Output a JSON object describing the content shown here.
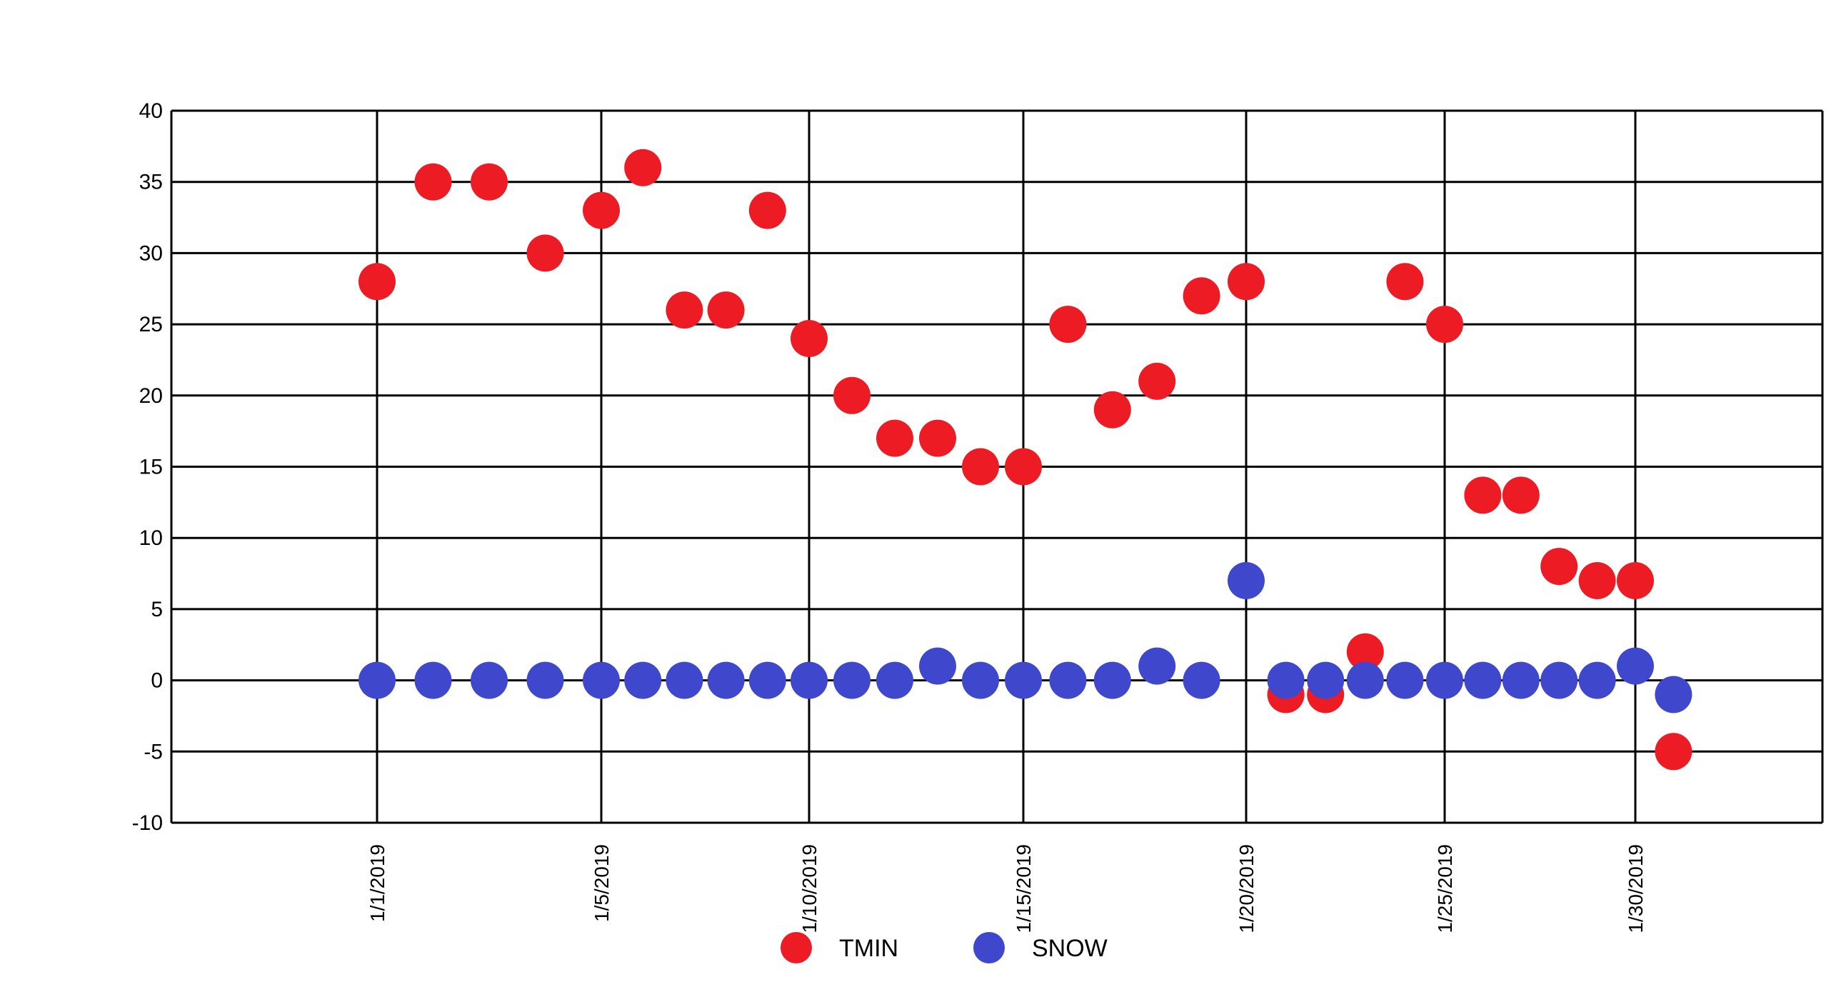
{
  "chart_data": {
    "type": "scatter",
    "title": "",
    "xlabel": "",
    "ylabel": "",
    "ylim": [
      -10,
      40
    ],
    "yticks": [
      "40",
      "35",
      "30",
      "25",
      "20",
      "15",
      "10",
      "5",
      "0",
      "-5",
      "-10"
    ],
    "xticks": [
      "1/1/2019",
      "1/5/2019",
      "1/10/2019",
      "1/15/2019",
      "1/20/2019",
      "1/25/2019",
      "1/30/2019"
    ],
    "grid": true,
    "legend_position": "bottom",
    "x_dates": [
      "1/1/2019",
      "1/2/2019",
      "1/3/2019",
      "1/4/2019",
      "1/5/2019",
      "1/6/2019",
      "1/7/2019",
      "1/8/2019",
      "1/9/2019",
      "1/10/2019",
      "1/11/2019",
      "1/12/2019",
      "1/13/2019",
      "1/14/2019",
      "1/15/2019",
      "1/16/2019",
      "1/17/2019",
      "1/18/2019",
      "1/19/2019",
      "1/20/2019",
      "1/21/2019",
      "1/22/2019",
      "1/23/2019",
      "1/24/2019",
      "1/25/2019",
      "1/26/2019",
      "1/27/2019",
      "1/28/2019",
      "1/29/2019",
      "1/30/2019",
      "1/31/2019"
    ],
    "series": [
      {
        "name": "TMIN",
        "color": "#ed1c24",
        "values": [
          28,
          35,
          35,
          30,
          33,
          36,
          26,
          26,
          33,
          24,
          20,
          17,
          17,
          15,
          15,
          25,
          19,
          21,
          27,
          28,
          -1,
          -1,
          2,
          28,
          25,
          13,
          13,
          8,
          7,
          7,
          -5
        ]
      },
      {
        "name": "SNOW",
        "color": "#3f48cc",
        "values": [
          0,
          0,
          0,
          0,
          0,
          0,
          0,
          0,
          0,
          0,
          0,
          0,
          1,
          0,
          0,
          0,
          0,
          1,
          0,
          7,
          0,
          0,
          0,
          0,
          0,
          0,
          0,
          0,
          0,
          1,
          -1
        ]
      }
    ]
  }
}
